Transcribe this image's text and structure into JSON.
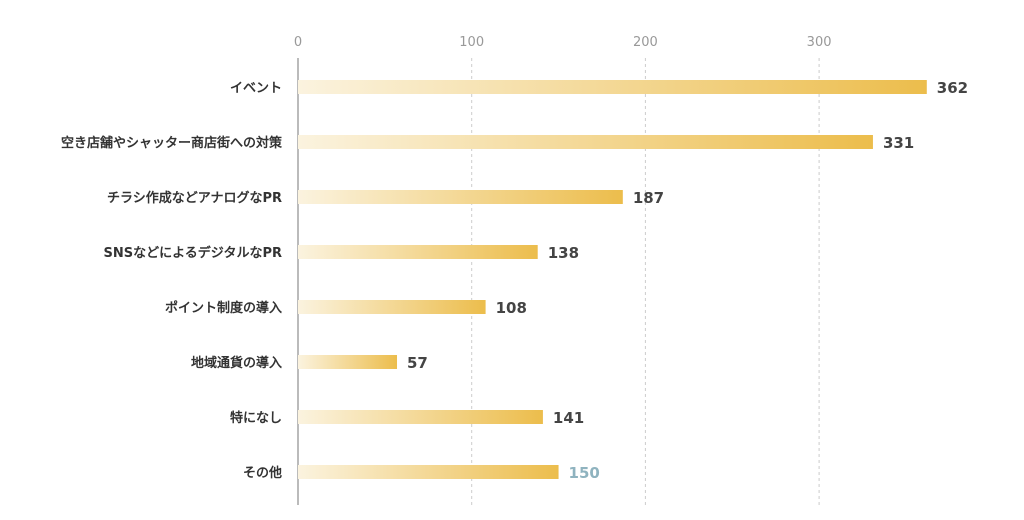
{
  "chart_data": {
    "type": "bar",
    "orientation": "horizontal",
    "categories": [
      "イベント",
      "空き店舗やシャッター商店街への対策",
      "チラシ作成などアナログなPR",
      "SNSなどによるデジタルなPR",
      "ポイント制度の導入",
      "地域通貨の導入",
      "特になし",
      "その他"
    ],
    "values": [
      362,
      331,
      187,
      138,
      108,
      57,
      141,
      150
    ],
    "value_labels": [
      "362",
      "331",
      "187",
      "138",
      "108",
      "57",
      "141",
      "150"
    ],
    "x_ticks": [
      "0",
      "100",
      "200",
      "300"
    ],
    "xlim": [
      0,
      380
    ],
    "grid": true,
    "title": "",
    "xlabel": "",
    "ylabel": "",
    "colors": {
      "bar_start": "#fbf3df",
      "bar_end": "#ecbd4c",
      "value_text": "#444444",
      "value_text_highlight": "#8fb3bf",
      "grid": "#cccccc",
      "axis": "#bbbbbb"
    },
    "highlight_index": 7
  }
}
